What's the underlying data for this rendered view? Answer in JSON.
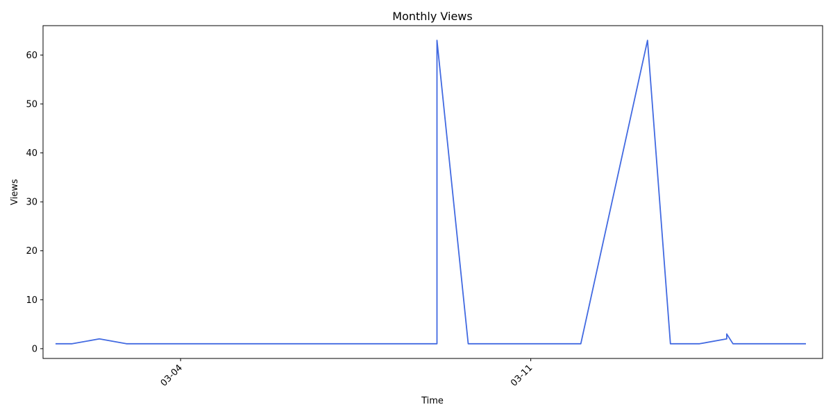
{
  "chart_data": {
    "type": "line",
    "title": "Monthly Views",
    "xlabel": "Time",
    "ylabel": "Views",
    "ylim": [
      -2,
      66
    ],
    "xlim": [
      "2024-03-01T06:00",
      "2024-03-16T20:00"
    ],
    "grid": false,
    "line_color": "#4169e1",
    "x_ticks": [
      {
        "date": "2024-03-04T00:00",
        "label": "03-04"
      },
      {
        "date": "2024-03-11T00:00",
        "label": "03-11"
      }
    ],
    "y_ticks": [
      0,
      10,
      20,
      30,
      40,
      50,
      60
    ],
    "series": [
      {
        "points": [
          {
            "x": "2024-03-01T12:00",
            "y": 1
          },
          {
            "x": "2024-03-01T20:00",
            "y": 1
          },
          {
            "x": "2024-03-02T09:00",
            "y": 2
          },
          {
            "x": "2024-03-02T22:00",
            "y": 1
          },
          {
            "x": "2024-03-09T03:00",
            "y": 1
          },
          {
            "x": "2024-03-09T03:00",
            "y": 63
          },
          {
            "x": "2024-03-09T18:00",
            "y": 1
          },
          {
            "x": "2024-03-12T00:00",
            "y": 1
          },
          {
            "x": "2024-03-13T08:00",
            "y": 63
          },
          {
            "x": "2024-03-13T19:00",
            "y": 1
          },
          {
            "x": "2024-03-14T09:00",
            "y": 1
          },
          {
            "x": "2024-03-14T22:00",
            "y": 2
          },
          {
            "x": "2024-03-14T22:00",
            "y": 3
          },
          {
            "x": "2024-03-15T01:00",
            "y": 1
          },
          {
            "x": "2024-03-16T12:00",
            "y": 1
          }
        ]
      }
    ]
  }
}
